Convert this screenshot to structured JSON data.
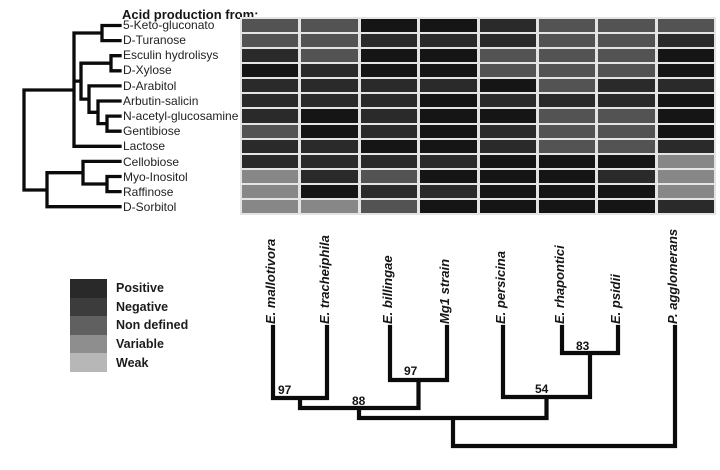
{
  "figure": {
    "title": "Acid production from:"
  },
  "chart_data": {
    "type": "heatmap",
    "title": "Acid production from:",
    "rows": [
      "5-Keto-gluconato",
      "D-Turanose",
      "Esculin hydrolisys",
      "D-Xylose",
      "D-Arabitol",
      "Arbutin-salicin",
      "N-acetyl-glucosamine",
      "Gentibiose",
      "Lactose",
      "Cellobiose",
      "Myo-Inositol",
      "Raffinose",
      "D-Sorbitol"
    ],
    "columns": [
      "E. mallotivora",
      "E. tracheiphila",
      "E. billingae",
      "Mg1 strain",
      "E. persicina",
      "E. rhapontici",
      "E. psidii",
      "P. agglomerans"
    ],
    "values": [
      [
        "non_defined",
        "non_defined",
        "positive",
        "positive",
        "negative",
        "non_defined",
        "non_defined",
        "non_defined"
      ],
      [
        "non_defined",
        "non_defined",
        "negative",
        "negative",
        "negative",
        "non_defined",
        "non_defined",
        "negative"
      ],
      [
        "negative",
        "non_defined",
        "positive",
        "positive",
        "non_defined",
        "non_defined",
        "non_defined",
        "positive"
      ],
      [
        "positive",
        "negative",
        "positive",
        "positive",
        "non_defined",
        "non_defined",
        "non_defined",
        "positive"
      ],
      [
        "negative",
        "negative",
        "negative",
        "negative",
        "positive",
        "non_defined",
        "negative",
        "negative"
      ],
      [
        "negative",
        "negative",
        "negative",
        "positive",
        "negative",
        "negative",
        "negative",
        "positive"
      ],
      [
        "negative",
        "positive",
        "negative",
        "positive",
        "positive",
        "non_defined",
        "non_defined",
        "positive"
      ],
      [
        "non_defined",
        "positive",
        "negative",
        "positive",
        "negative",
        "non_defined",
        "non_defined",
        "positive"
      ],
      [
        "negative",
        "negative",
        "positive",
        "positive",
        "negative",
        "non_defined",
        "non_defined",
        "negative"
      ],
      [
        "negative",
        "negative",
        "negative",
        "negative",
        "positive",
        "positive",
        "positive",
        "variable"
      ],
      [
        "variable",
        "negative",
        "non_defined",
        "positive",
        "positive",
        "positive",
        "negative",
        "variable"
      ],
      [
        "variable",
        "positive",
        "negative",
        "negative",
        "positive",
        "positive",
        "positive",
        "variable"
      ],
      [
        "variable",
        "variable",
        "non_defined",
        "positive",
        "positive",
        "positive",
        "positive",
        "negative"
      ]
    ],
    "legend_position": "bottom-left",
    "grid": false
  },
  "cell_colors": {
    "positive": "#151515",
    "negative": "#2a2a2a",
    "non_defined": "#535353",
    "variable": "#878787",
    "weak": "#b9b9b9"
  },
  "legend": {
    "items": [
      {
        "key": "positive",
        "label": "Positive",
        "color": "#292929"
      },
      {
        "key": "negative",
        "label": "Negative",
        "color": "#3c3c3c"
      },
      {
        "key": "non_defined",
        "label": "Non defined",
        "color": "#606060"
      },
      {
        "key": "variable",
        "label": "Variable",
        "color": "#8e8e8e"
      },
      {
        "key": "weak",
        "label": "Weak",
        "color": "#b7b7b7"
      }
    ]
  },
  "phylo": {
    "bootstrap_values": [
      "97",
      "97",
      "83",
      "54",
      "88"
    ]
  }
}
